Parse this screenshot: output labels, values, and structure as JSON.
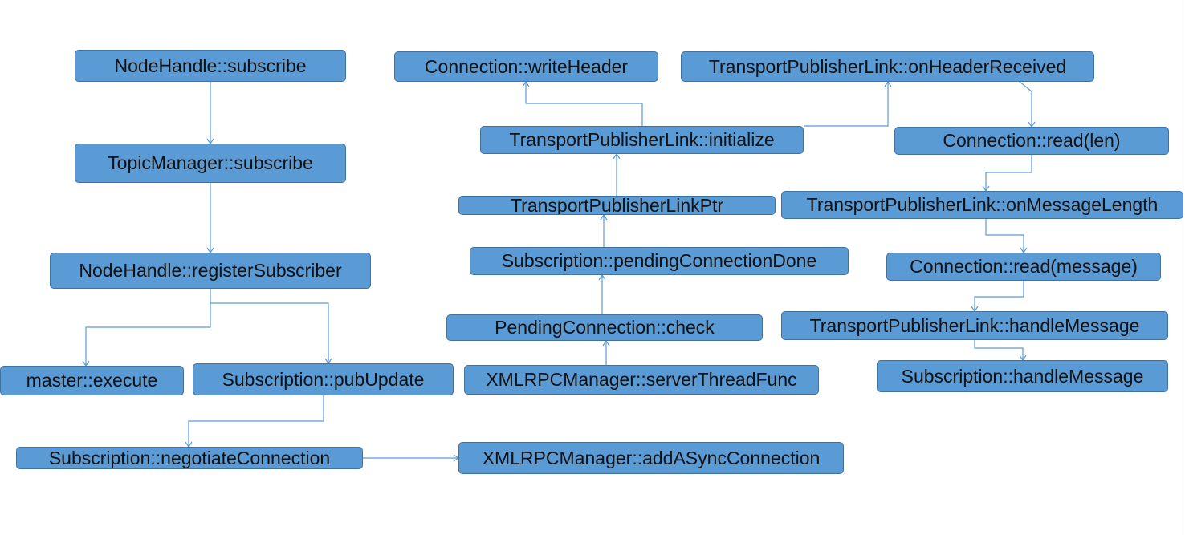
{
  "colors": {
    "node_fill": "#5b9bd5",
    "node_border": "#41719c",
    "edge": "#5b9bd5",
    "text": "#111111",
    "background": "#ffffff"
  },
  "nodes": {
    "nh_subscribe": "NodeHandle::subscribe",
    "tm_subscribe": "TopicManager::subscribe",
    "nh_register": "NodeHandle::registerSubscriber",
    "master_execute": "master::execute",
    "sub_pubupdate": "Subscription::pubUpdate",
    "sub_negotiate": "Subscription::negotiateConnection",
    "xml_add_async": "XMLRPCManager::addASyncConnection",
    "conn_writeheader": "Connection::writeHeader",
    "tpl_initialize": "TransportPublisherLink::initialize",
    "tpl_ptr": "TransportPublisherLinkPtr",
    "sub_pending_done": "Subscription::pendingConnectionDone",
    "pending_check": "PendingConnection::check",
    "xml_server_thread": "XMLRPCManager::serverThreadFunc",
    "tpl_on_header": "TransportPublisherLink::onHeaderReceived",
    "conn_read_len": "Connection::read(len)",
    "tpl_on_msglen": "TransportPublisherLink::onMessageLength",
    "conn_read_msg": "Connection::read(message)",
    "tpl_handle_msg": "TransportPublisherLink::handleMessage",
    "sub_handle_msg": "Subscription::handleMessage"
  }
}
